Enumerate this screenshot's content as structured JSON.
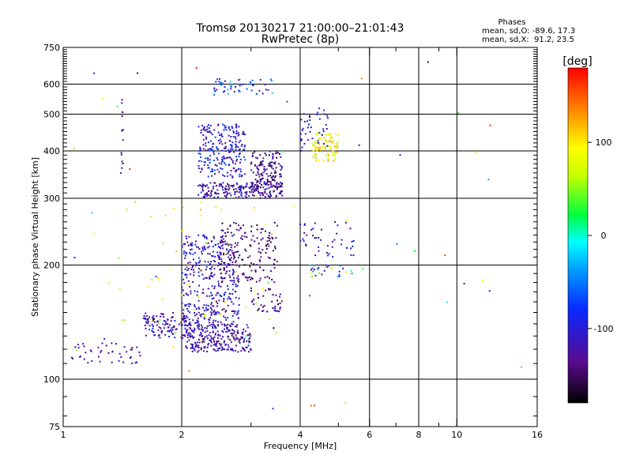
{
  "chart_data": {
    "type": "scatter",
    "title": "Tromsø 20130217 21:00:00–21:01:43",
    "subtitle": "RwPretec (8p)",
    "stats": {
      "heading": "Phases",
      "line1": "mean, sd,O: -89.6, 17.3",
      "line2": "mean, sd,X:  91.2, 23.5"
    },
    "xlabel": "Frequency [MHz]",
    "ylabel": "Stationary phase Virtual Height [km]",
    "xscale": "log",
    "yscale": "log",
    "xlim": [
      1,
      16
    ],
    "ylim": [
      75,
      750
    ],
    "xticks": [
      1,
      2,
      4,
      6,
      8,
      10,
      16
    ],
    "xminor": [
      3,
      5,
      7,
      9
    ],
    "yticks": [
      75,
      100,
      200,
      300,
      400,
      500,
      600,
      750
    ],
    "xgrid": [
      2,
      4,
      6,
      8,
      10
    ],
    "ygrid": [
      100,
      200,
      300,
      400,
      500,
      600
    ],
    "grid": true,
    "colorbar": {
      "label": "[deg]",
      "range": [
        -180,
        180
      ],
      "ticks": [
        100,
        0,
        -100
      ]
    },
    "clusters": [
      {
        "x": [
          2.05,
          3.0
        ],
        "y": [
          118,
          140
        ],
        "phase": [
          -150,
          -90
        ],
        "n": 260
      },
      {
        "x": [
          1.6,
          2.1
        ],
        "y": [
          128,
          150
        ],
        "phase": [
          -150,
          -80
        ],
        "n": 120
      },
      {
        "x": [
          2.0,
          2.8
        ],
        "y": [
          140,
          240
        ],
        "phase": [
          -150,
          -70
        ],
        "n": 380
      },
      {
        "x": [
          2.2,
          3.6
        ],
        "y": [
          300,
          330
        ],
        "phase": [
          -160,
          -80
        ],
        "n": 200
      },
      {
        "x": [
          2.2,
          2.9
        ],
        "y": [
          340,
          470
        ],
        "phase": [
          -140,
          -60
        ],
        "n": 230
      },
      {
        "x": [
          3.0,
          3.6
        ],
        "y": [
          320,
          400
        ],
        "phase": [
          -170,
          -100
        ],
        "n": 140
      },
      {
        "x": [
          2.5,
          3.5
        ],
        "y": [
          180,
          260
        ],
        "phase": [
          -170,
          -120
        ],
        "n": 160
      },
      {
        "x": [
          3.0,
          3.6
        ],
        "y": [
          150,
          175
        ],
        "phase": [
          -170,
          -110
        ],
        "n": 40
      },
      {
        "x": [
          2.4,
          3.4
        ],
        "y": [
          560,
          620
        ],
        "phase": [
          -140,
          -20
        ],
        "n": 50
      },
      {
        "x": [
          1.05,
          1.6
        ],
        "y": [
          110,
          125
        ],
        "phase": [
          -150,
          -100
        ],
        "n": 45
      },
      {
        "x": [
          4.3,
          5.0
        ],
        "y": [
          375,
          450
        ],
        "phase": [
          60,
          130
        ],
        "n": 90
      },
      {
        "x": [
          4.0,
          4.7
        ],
        "y": [
          400,
          520
        ],
        "phase": [
          -130,
          -80
        ],
        "n": 40
      },
      {
        "x": [
          4.0,
          5.5
        ],
        "y": [
          210,
          260
        ],
        "phase": [
          -150,
          -80
        ],
        "n": 45
      },
      {
        "x": [
          4.2,
          5.8
        ],
        "y": [
          185,
          200
        ],
        "phase": [
          -140,
          120
        ],
        "n": 30
      },
      {
        "x": [
          1.4,
          1.42
        ],
        "y": [
          330,
          560
        ],
        "phase": [
          -170,
          -100
        ],
        "n": 14
      },
      {
        "x": [
          1.3,
          3.5
        ],
        "y": [
          120,
          300
        ],
        "phase": [
          40,
          120
        ],
        "n": 60
      },
      {
        "x": [
          1.0,
          15.0
        ],
        "y": [
          80,
          700
        ],
        "phase": [
          -180,
          180
        ],
        "n": 45
      }
    ]
  }
}
